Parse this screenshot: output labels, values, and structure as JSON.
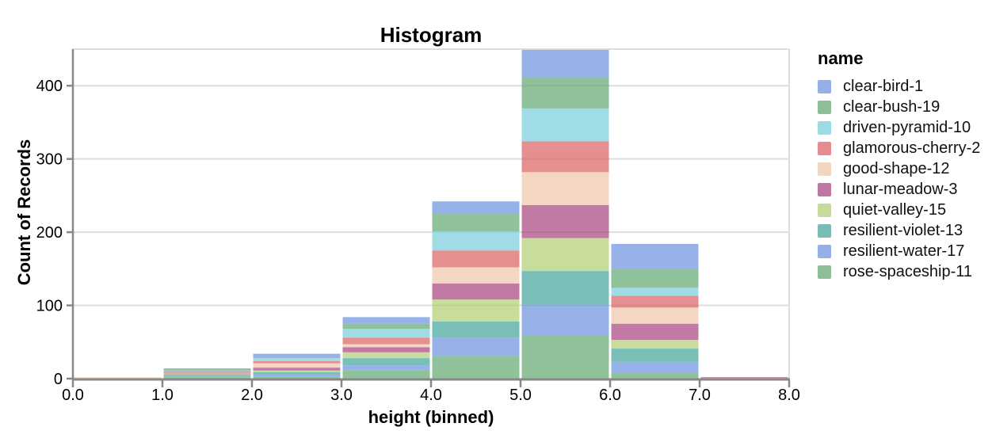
{
  "chart_data": {
    "type": "bar",
    "variant": "stacked-histogram",
    "title": "Histogram",
    "xlabel": "height (binned)",
    "ylabel": "Count of Records",
    "legend_title": "name",
    "legend_position": "right",
    "grid": true,
    "background": "#ffffff",
    "bin_edges": [
      0,
      1,
      2,
      3,
      4,
      5,
      6,
      7,
      8
    ],
    "x_tick_labels": [
      "0.0",
      "1.0",
      "2.0",
      "3.0",
      "4.0",
      "5.0",
      "6.0",
      "7.0",
      "8.0"
    ],
    "y_ticks": [
      0,
      100,
      200,
      300,
      400
    ],
    "ylim": [
      0,
      450
    ],
    "bar_opacity": 0.7,
    "stack_order": "first-series-on-top",
    "series": [
      {
        "name": "clear-bird-1",
        "color": "#6A92DE",
        "values": [
          0,
          1,
          5,
          9,
          16,
          38,
          34,
          0
        ]
      },
      {
        "name": "clear-bush-19",
        "color": "#5FA66F",
        "values": [
          0,
          2,
          1,
          7,
          25,
          42,
          26,
          0
        ]
      },
      {
        "name": "driven-pyramid-10",
        "color": "#76CDDB",
        "values": [
          0,
          1,
          4,
          12,
          26,
          45,
          11,
          0
        ]
      },
      {
        "name": "glamorous-cherry-2",
        "color": "#DA6063",
        "values": [
          0,
          2,
          3,
          9,
          23,
          42,
          16,
          0
        ]
      },
      {
        "name": "good-shape-12",
        "color": "#EEC6A8",
        "values": [
          1,
          1,
          6,
          4,
          22,
          45,
          22,
          0
        ]
      },
      {
        "name": "lunar-meadow-3",
        "color": "#A6427C",
        "values": [
          0,
          1,
          4,
          7,
          22,
          45,
          22,
          1
        ]
      },
      {
        "name": "quiet-valley-15",
        "color": "#B0CD72",
        "values": [
          1,
          1,
          2,
          8,
          30,
          45,
          12,
          0
        ]
      },
      {
        "name": "resilient-violet-13",
        "color": "#42A498",
        "values": [
          0,
          2,
          3,
          10,
          22,
          46,
          18,
          0
        ]
      },
      {
        "name": "resilient-water-17",
        "color": "#6A92DE",
        "values": [
          0,
          1,
          3,
          7,
          25,
          42,
          15,
          1
        ]
      },
      {
        "name": "rose-spaceship-11",
        "color": "#5FA66F",
        "values": [
          0,
          2,
          3,
          11,
          31,
          59,
          8,
          0
        ]
      }
    ],
    "colors": {
      "grid": "#dddddd",
      "plot_border": "#dddddd",
      "axis": "#888888",
      "text": "#000000"
    }
  }
}
